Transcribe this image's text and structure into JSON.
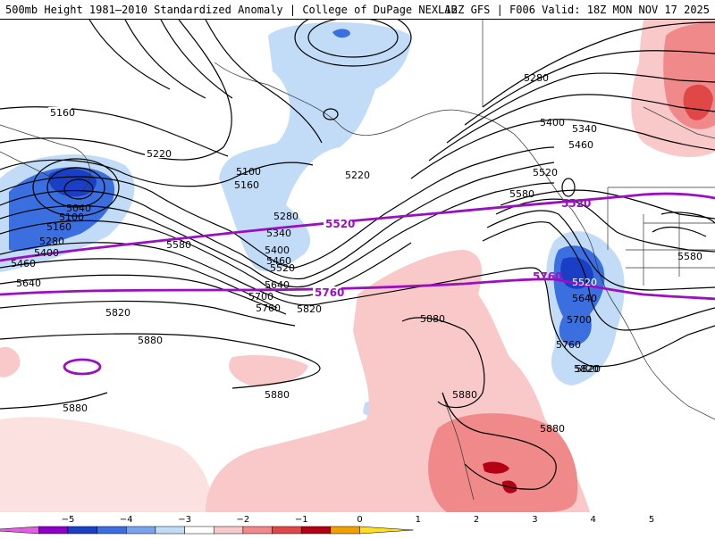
{
  "header": {
    "left": "500mb Height 1981–2010 Standardized Anomaly | College of DuPage NEXLAB",
    "right": "12Z GFS | F006 Valid: 18Z MON NOV 17 2025"
  },
  "map": {
    "contour_labels": [
      "5160",
      "5220",
      "5040",
      "5100",
      "5160",
      "5280",
      "5400",
      "5460",
      "5640",
      "5100",
      "5160",
      "5280",
      "5340",
      "5400",
      "5460",
      "5520",
      "5220",
      "5580",
      "5700",
      "5760",
      "5820",
      "5880",
      "5880",
      "5880",
      "5880",
      "5640",
      "5280",
      "5400",
      "5340",
      "5460",
      "5520",
      "5580",
      "5520",
      "5640",
      "5700",
      "5760",
      "5820",
      "5580"
    ],
    "highlight_5520": "5520",
    "highlight_5760": "5760",
    "highlight_5760_east": "5760"
  },
  "colorbar": {
    "ticks": [
      "−5",
      "−4",
      "−3",
      "−2",
      "−1",
      "0",
      "1",
      "2",
      "3",
      "4",
      "5"
    ],
    "colors": [
      "#e060e0",
      "#8a00c8",
      "#1a3fc4",
      "#3b6fe0",
      "#7aa3ee",
      "#c2dcf7",
      "#ffffff",
      "#f9c9c9",
      "#f08a8a",
      "#e04848",
      "#b40014",
      "#f0a000",
      "#ffe020"
    ]
  }
}
